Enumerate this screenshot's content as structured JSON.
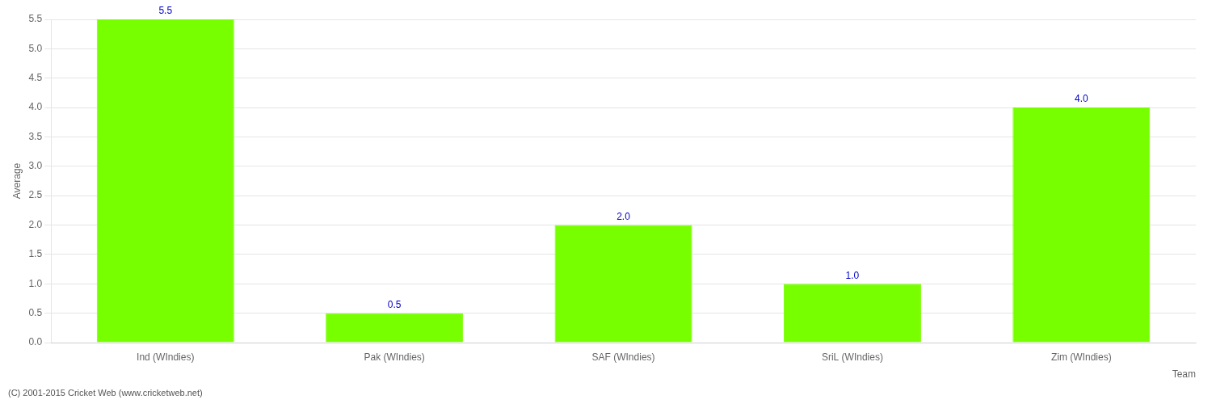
{
  "chart_data": {
    "type": "bar",
    "categories": [
      "Ind (WIndies)",
      "Pak (WIndies)",
      "SAF (WIndies)",
      "SriL (WIndies)",
      "Zim (WIndies)"
    ],
    "values": [
      5.5,
      0.5,
      2.0,
      1.0,
      4.0
    ],
    "value_labels": [
      "5.5",
      "0.5",
      "2.0",
      "1.0",
      "4.0"
    ],
    "data_labels": true,
    "color": "#77ff00",
    "xlabel": "Team",
    "ylabel": "Average",
    "ylim": [
      0.0,
      5.5
    ],
    "yticks": [
      {
        "value": 0,
        "label": "0.0"
      },
      0.5,
      {
        "value": 1,
        "label": "1.0"
      },
      1.5,
      {
        "value": 2,
        "label": "2.0"
      },
      2.5,
      {
        "value": 3,
        "label": "3.0"
      },
      3.5,
      {
        "value": 4,
        "label": "4.0"
      },
      4.5,
      {
        "value": 5,
        "label": "5.0"
      },
      5.5
    ],
    "grid": true,
    "annotations": [
      "(C) 2001-2015 Cricket Web (www.cricketweb.net)"
    ]
  }
}
